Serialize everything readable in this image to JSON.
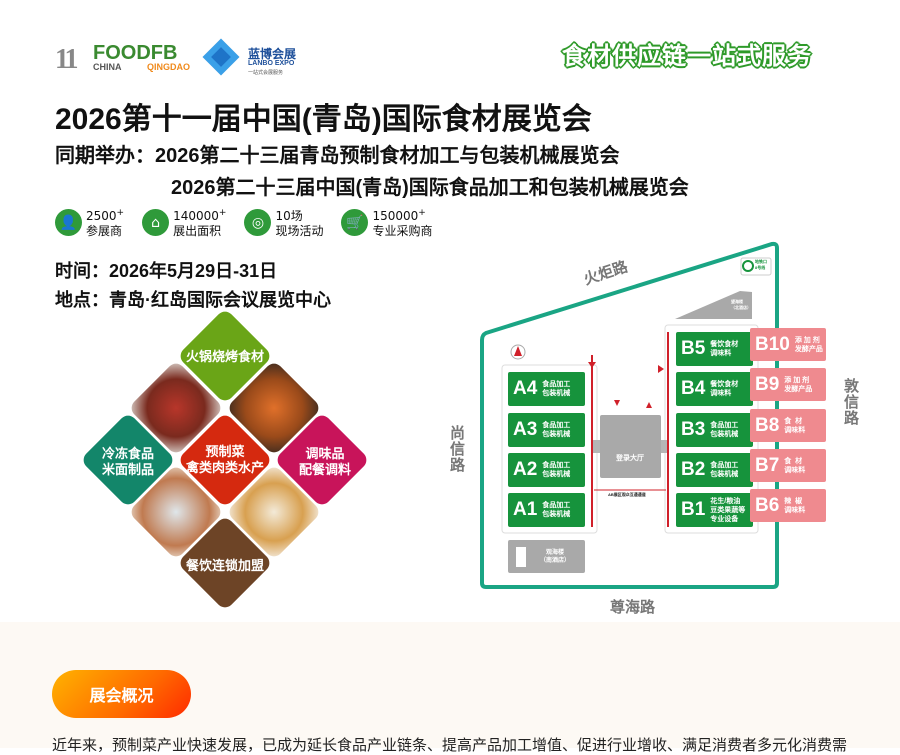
{
  "header": {
    "logo_foodfb": {
      "number": "11",
      "brand": "FOODFB",
      "china": "CHINA",
      "city": "QINGDAO"
    },
    "logo_lanbo": {
      "cn": "蓝博会展",
      "en": "LANBO EXPO",
      "tagline": "一站式会展服务"
    },
    "slogan": "食材供应链一站式服务"
  },
  "title": "2026第十一届中国(青岛)国际食材展览会",
  "concurrent": {
    "label": "同期举办：",
    "line1": "2026第二十三届青岛预制食材加工与包装机械展览会",
    "line2": "2026第二十三届中国(青岛)国际食品加工和包装机械展览会"
  },
  "stats": [
    {
      "icon": "person-icon",
      "value": "2500",
      "sup": "+",
      "label": "参展商"
    },
    {
      "icon": "house-icon",
      "value": "140000",
      "sup": "+",
      "label": "展出面积"
    },
    {
      "icon": "activity-icon",
      "value": "10场",
      "sup": "",
      "label": "现场活动"
    },
    {
      "icon": "cart-icon",
      "value": "150000",
      "sup": "+",
      "label": "专业采购商"
    }
  ],
  "time": "时间：2026年5月29日-31日",
  "place": "地点：青岛·红岛国际会议展览中心",
  "categories": [
    {
      "label": "火锅烧烤食材",
      "color": "#6aa517"
    },
    {
      "label": "预制菜\n禽类肉类水产",
      "color": "#d5290f"
    },
    {
      "label": "冷冻食品\n米面制品",
      "color": "#13866a"
    },
    {
      "label": "调味品\n配餐调料",
      "color": "#c8145a"
    },
    {
      "label": "餐饮连锁加盟",
      "color": "#6d4426"
    }
  ],
  "map": {
    "roads": {
      "north": "火炬路",
      "west": "尚信路",
      "east": "敦信路",
      "south": "尊海路"
    },
    "subway": "地铁口\n8号线",
    "hall": "登录大厅",
    "passage": "AB展区观众互通通道",
    "south_building": "观海楼\n（南酒店）",
    "north_building": "望海楼\n（北酒店）",
    "a_halls": [
      {
        "id": "A4",
        "desc": "食品加工\n包装机械"
      },
      {
        "id": "A3",
        "desc": "食品加工\n包装机械"
      },
      {
        "id": "A2",
        "desc": "食品加工\n包装机械"
      },
      {
        "id": "A1",
        "desc": "食品加工\n包装机械"
      }
    ],
    "b_halls": [
      {
        "id": "B5",
        "desc": "餐饮食材\n调味料"
      },
      {
        "id": "B4",
        "desc": "餐饮食材\n调味料"
      },
      {
        "id": "B3",
        "desc": "食品加工\n包装机械"
      },
      {
        "id": "B2",
        "desc": "食品加工\n包装机械"
      },
      {
        "id": "B1",
        "desc": "花生/粮油\n豆类果蔬等\n专业设备"
      }
    ],
    "b_pink_halls": [
      {
        "id": "B10",
        "desc": "添 加 剂\n发酵产品"
      },
      {
        "id": "B9",
        "desc": "添 加 剂\n发酵产品"
      },
      {
        "id": "B8",
        "desc": "食  材\n调味料"
      },
      {
        "id": "B7",
        "desc": "食  材\n调味料"
      },
      {
        "id": "B6",
        "desc": "辣  椒\n调味料"
      }
    ],
    "colors": {
      "border": "#1aa584",
      "hall_green": "#16933c",
      "hall_pink": "#ef8a8f",
      "route": "#d0202a"
    }
  },
  "overview": {
    "button": "展会概况",
    "text": "近年来，预制菜产业快速发展，已成为延长食品产业链条、提高产品加工增值、促进行业增收、满足消费者多元化消费需"
  }
}
